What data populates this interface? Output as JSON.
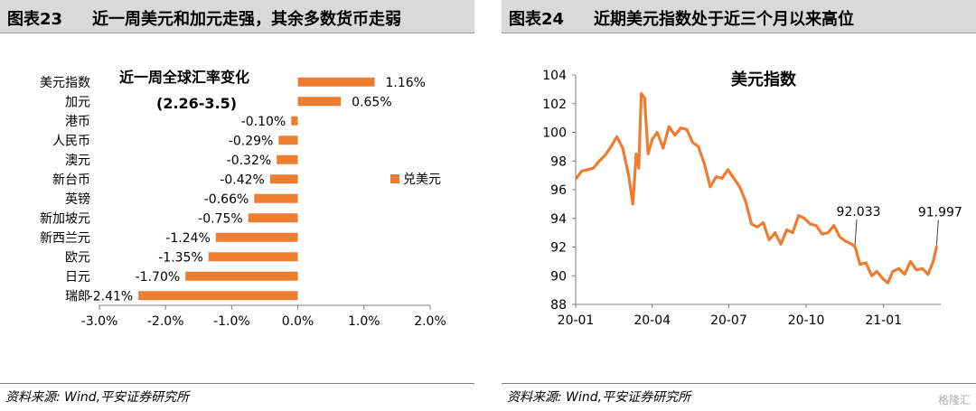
{
  "left_panel": {
    "figure_number": "图表23",
    "figure_title": "近一周美元和加元走强，其余多数货币走弱",
    "source": "资料来源: Wind,平安证券研究所"
  },
  "right_panel": {
    "figure_number": "图表24",
    "figure_title": "近期美元指数处于近三个月以来高位",
    "source": "资料来源: Wind,平安证券研究所"
  },
  "watermark": "格隆汇",
  "colors": {
    "series": "#ED7D31",
    "header_bg": "#d9d9d9"
  },
  "chart_data": [
    {
      "type": "bar",
      "orientation": "horizontal",
      "title": "近一周全球汇率变化",
      "subtitle": "(2.26-3.5)",
      "legend": "兑美元",
      "legend_position": "right",
      "categories": [
        "美元指数",
        "加元",
        "港币",
        "人民币",
        "澳元",
        "新台币",
        "英镑",
        "新加坡元",
        "新西兰元",
        "欧元",
        "日元",
        "瑞郎"
      ],
      "values": [
        1.16,
        0.65,
        -0.1,
        -0.29,
        -0.32,
        -0.42,
        -0.66,
        -0.75,
        -1.24,
        -1.35,
        -1.7,
        -2.41
      ],
      "value_labels": [
        "1.16%",
        "0.65%",
        "-0.10%",
        "-0.29%",
        "-0.32%",
        "-0.42%",
        "-0.66%",
        "-0.75%",
        "-1.24%",
        "-1.35%",
        "-1.70%",
        "-2.41%"
      ],
      "xlim": [
        -3.0,
        2.0
      ],
      "xticks": [
        -3.0,
        -2.0,
        -1.0,
        0.0,
        1.0,
        2.0
      ],
      "xtick_labels": [
        "-3.0%",
        "-2.0%",
        "-1.0%",
        "0.0%",
        "1.0%",
        "2.0%"
      ],
      "grid": false
    },
    {
      "type": "line",
      "title": "美元指数",
      "x_tick_labels": [
        "20-01",
        "20-04",
        "20-07",
        "20-10",
        "21-01"
      ],
      "ylim": [
        88,
        104
      ],
      "yticks": [
        88,
        90,
        92,
        94,
        96,
        98,
        100,
        102,
        104
      ],
      "annotations": [
        {
          "text": "92.033",
          "date": "2020-11-28",
          "value": 92.033
        },
        {
          "text": "91.997",
          "date": "2021-03-05",
          "value": 91.997
        }
      ],
      "grid": false,
      "series": [
        {
          "points": [
            [
              "2020-01-02",
              96.8
            ],
            [
              "2020-01-08",
              97.3
            ],
            [
              "2020-01-15",
              97.4
            ],
            [
              "2020-01-22",
              97.5
            ],
            [
              "2020-01-29",
              98.0
            ],
            [
              "2020-02-05",
              98.4
            ],
            [
              "2020-02-12",
              99.0
            ],
            [
              "2020-02-19",
              99.7
            ],
            [
              "2020-02-26",
              98.9
            ],
            [
              "2020-03-04",
              97.0
            ],
            [
              "2020-03-09",
              95.0
            ],
            [
              "2020-03-13",
              98.5
            ],
            [
              "2020-03-16",
              97.5
            ],
            [
              "2020-03-19",
              102.7
            ],
            [
              "2020-03-23",
              102.4
            ],
            [
              "2020-03-27",
              98.5
            ],
            [
              "2020-04-01",
              99.5
            ],
            [
              "2020-04-07",
              100.0
            ],
            [
              "2020-04-14",
              98.9
            ],
            [
              "2020-04-21",
              100.4
            ],
            [
              "2020-04-28",
              99.8
            ],
            [
              "2020-05-05",
              100.3
            ],
            [
              "2020-05-12",
              100.2
            ],
            [
              "2020-05-19",
              99.3
            ],
            [
              "2020-05-26",
              99.0
            ],
            [
              "2020-06-02",
              97.8
            ],
            [
              "2020-06-09",
              96.2
            ],
            [
              "2020-06-16",
              96.9
            ],
            [
              "2020-06-23",
              96.8
            ],
            [
              "2020-06-30",
              97.4
            ],
            [
              "2020-07-07",
              96.8
            ],
            [
              "2020-07-14",
              96.2
            ],
            [
              "2020-07-21",
              95.2
            ],
            [
              "2020-07-28",
              93.6
            ],
            [
              "2020-08-04",
              93.4
            ],
            [
              "2020-08-11",
              93.7
            ],
            [
              "2020-08-18",
              92.5
            ],
            [
              "2020-08-25",
              93.0
            ],
            [
              "2020-09-01",
              92.2
            ],
            [
              "2020-09-08",
              93.2
            ],
            [
              "2020-09-15",
              93.0
            ],
            [
              "2020-09-22",
              94.2
            ],
            [
              "2020-09-29",
              94.0
            ],
            [
              "2020-10-06",
              93.6
            ],
            [
              "2020-10-13",
              93.5
            ],
            [
              "2020-10-20",
              92.9
            ],
            [
              "2020-10-27",
              93.0
            ],
            [
              "2020-11-03",
              93.5
            ],
            [
              "2020-11-10",
              92.7
            ],
            [
              "2020-11-17",
              92.4
            ],
            [
              "2020-11-24",
              92.2
            ],
            [
              "2020-11-28",
              92.033
            ],
            [
              "2020-12-04",
              90.8
            ],
            [
              "2020-12-11",
              90.9
            ],
            [
              "2020-12-18",
              90.0
            ],
            [
              "2020-12-24",
              90.3
            ],
            [
              "2020-12-31",
              89.8
            ],
            [
              "2021-01-06",
              89.5
            ],
            [
              "2021-01-12",
              90.3
            ],
            [
              "2021-01-19",
              90.5
            ],
            [
              "2021-01-26",
              90.1
            ],
            [
              "2021-02-02",
              91.0
            ],
            [
              "2021-02-09",
              90.4
            ],
            [
              "2021-02-16",
              90.5
            ],
            [
              "2021-02-23",
              90.1
            ],
            [
              "2021-03-01",
              91.0
            ],
            [
              "2021-03-05",
              91.997
            ]
          ]
        }
      ]
    }
  ]
}
